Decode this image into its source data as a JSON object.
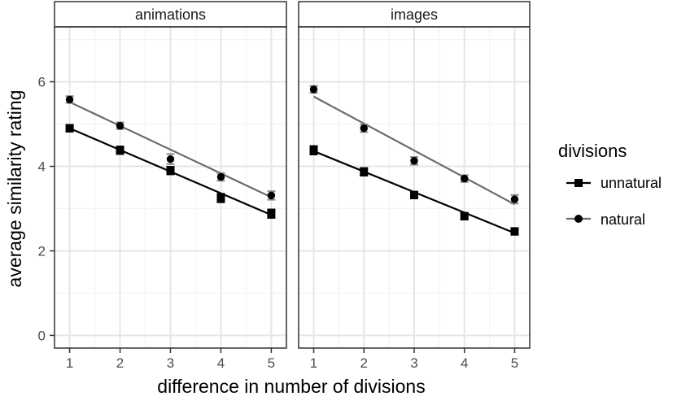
{
  "chart_data": {
    "type": "line",
    "facets": [
      "animations",
      "images"
    ],
    "xlabel": "difference in number of divisions",
    "ylabel": "average similarity rating",
    "x": [
      1,
      2,
      3,
      4,
      5
    ],
    "xticks": [
      "1",
      "2",
      "3",
      "4",
      "5"
    ],
    "yticks": [
      0,
      2,
      4,
      6
    ],
    "ylim": [
      -0.3,
      7.3
    ],
    "xlim": [
      0.7,
      5.3
    ],
    "grid": true,
    "legend": {
      "title": "divisions",
      "placement": "right",
      "entries": [
        {
          "name": "unnatural",
          "color": "#000000",
          "marker": "square"
        },
        {
          "name": "natural",
          "color": "#6b6b6b",
          "marker": "circle"
        }
      ]
    },
    "panels": [
      {
        "facet": "animations",
        "series": [
          {
            "name": "unnatural",
            "points": [
              4.9,
              4.38,
              3.9,
              3.25,
              2.88
            ],
            "error": [
              0.08,
              0.09,
              0.09,
              0.1,
              0.1
            ],
            "fit": [
              4.9,
              2.85
            ]
          },
          {
            "name": "natural",
            "points": [
              5.58,
              4.96,
              4.17,
              3.75,
              3.31
            ],
            "error": [
              0.08,
              0.08,
              0.12,
              0.09,
              0.1
            ],
            "fit": [
              5.52,
              3.27
            ]
          }
        ]
      },
      {
        "facet": "images",
        "series": [
          {
            "name": "unnatural",
            "points": [
              4.38,
              3.87,
              3.32,
              2.82,
              2.46
            ],
            "error": [
              0.1,
              0.09,
              0.08,
              0.08,
              0.08
            ],
            "fit": [
              4.36,
              2.42
            ]
          },
          {
            "name": "natural",
            "points": [
              5.82,
              4.9,
              4.13,
              3.71,
              3.22
            ],
            "error": [
              0.08,
              0.09,
              0.09,
              0.08,
              0.1
            ],
            "fit": [
              5.65,
              3.1
            ]
          }
        ]
      }
    ]
  }
}
